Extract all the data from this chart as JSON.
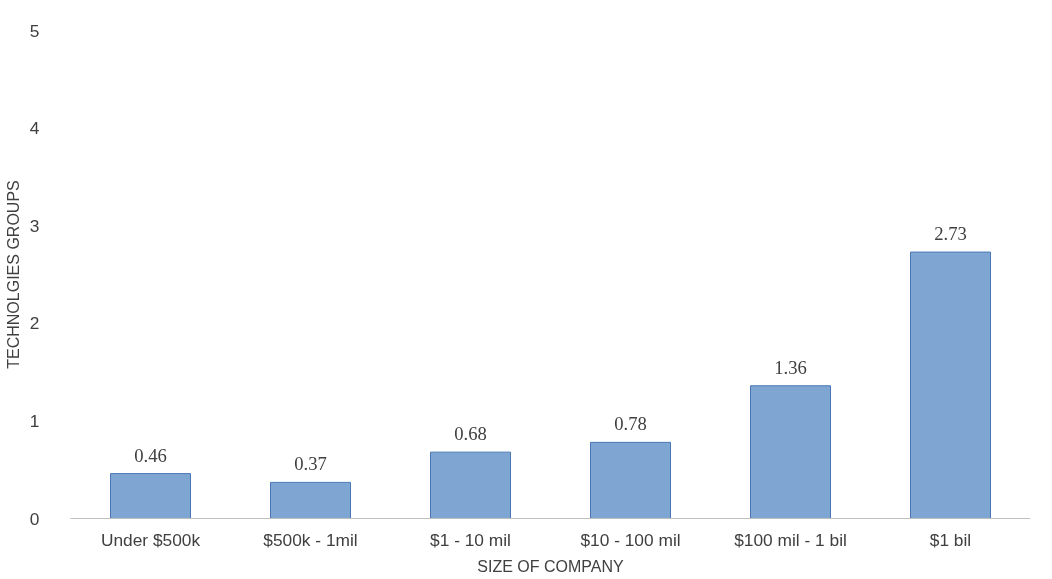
{
  "chart_data": {
    "type": "bar",
    "xlabel": "SIZE OF COMPANY",
    "ylabel": "TECHNOLGIES GROUPS",
    "categories": [
      "Under $500k",
      "$500k - 1mil",
      "$1 - 10 mil",
      "$10 - 100 mil",
      "$100 mil - 1 bil",
      "$1 bil"
    ],
    "values": [
      0.46,
      0.37,
      0.68,
      0.78,
      1.36,
      2.73
    ],
    "color": "#7fa6d3",
    "ylim": [
      0,
      5
    ],
    "yticks": [
      0,
      1,
      2,
      3,
      4,
      5
    ],
    "grid": false,
    "data_labels": true
  }
}
